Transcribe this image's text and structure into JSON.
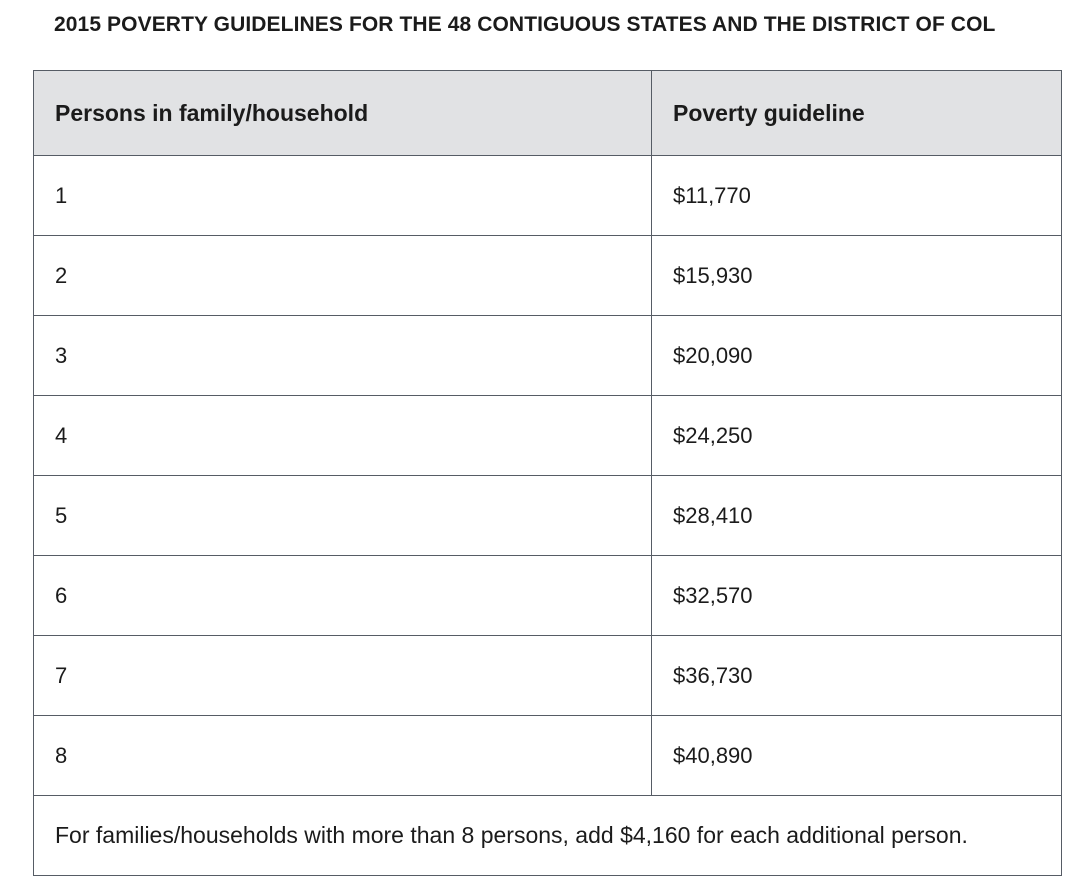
{
  "title": "2015 POVERTY GUIDELINES FOR THE 48 CONTIGUOUS STATES AND THE DISTRICT OF COL",
  "table": {
    "headers": [
      "Persons in family/household",
      "Poverty guideline"
    ],
    "rows": [
      {
        "persons": "1",
        "guideline": "$11,770"
      },
      {
        "persons": "2",
        "guideline": "$15,930"
      },
      {
        "persons": "3",
        "guideline": "$20,090"
      },
      {
        "persons": "4",
        "guideline": "$24,250"
      },
      {
        "persons": "5",
        "guideline": "$28,410"
      },
      {
        "persons": "6",
        "guideline": "$32,570"
      },
      {
        "persons": "7",
        "guideline": "$36,730"
      },
      {
        "persons": "8",
        "guideline": "$40,890"
      }
    ],
    "footnote": "For families/households with more than 8 persons, add $4,160 for each additional person."
  }
}
